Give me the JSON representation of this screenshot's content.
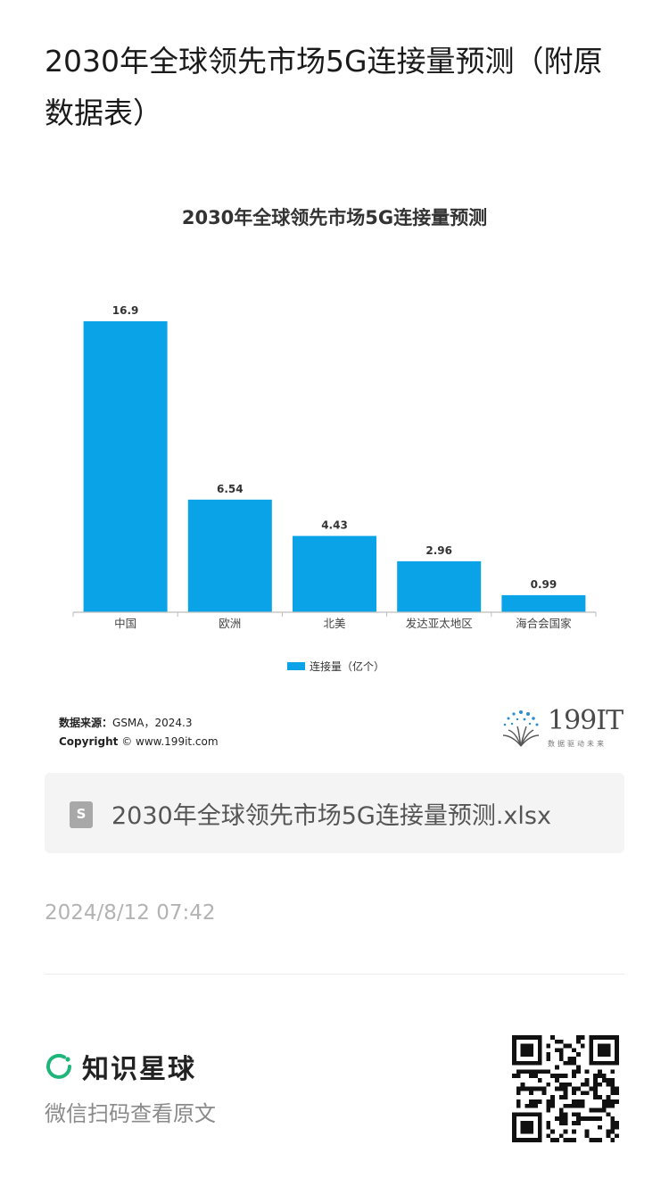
{
  "page": {
    "title": "2030年全球领先市场5G连接量预测（附原数据表）"
  },
  "chart_data": {
    "type": "bar",
    "title": "2030年全球领先市场5G连接量预测",
    "categories": [
      "中国",
      "欧洲",
      "北美",
      "发达亚太地区",
      "海合会国家"
    ],
    "series": [
      {
        "name": "连接量（亿个）",
        "values": [
          16.9,
          6.54,
          4.43,
          2.96,
          0.99
        ],
        "color": "#0aa3e8"
      }
    ],
    "data_labels": [
      "16.9",
      "6.54",
      "4.43",
      "2.96",
      "0.99"
    ],
    "ylim": [
      0,
      16.9
    ],
    "grid": false,
    "legend": "bottom-center"
  },
  "source": {
    "label": "数据来源：",
    "value": "GSMA，2024.3",
    "copyright_label": "Copyright",
    "copyright_value": "© www.199it.com"
  },
  "brand": {
    "name": "199IT",
    "tagline": "数据驱动未来"
  },
  "attachment": {
    "icon": "spreadsheet-file-icon",
    "icon_glyph": "S",
    "filename": "2030年全球领先市场5G连接量预测.xlsx"
  },
  "meta": {
    "date": "2024/8/12 07:42"
  },
  "footer": {
    "brand": "知识星球",
    "hint": "微信扫码查看原文"
  },
  "colors": {
    "bar": "#0aa3e8",
    "footer_accent": "#1fb57a"
  }
}
